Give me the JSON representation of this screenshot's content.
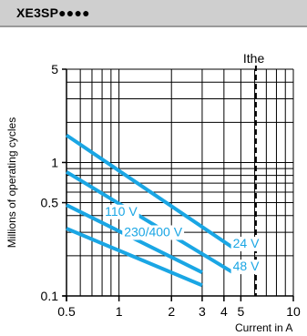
{
  "header": {
    "title": "XE3SP●●●●"
  },
  "colors": {
    "series": "#1aa6e4",
    "header_bg": "#cfcfcf",
    "grid": "#000000"
  },
  "chart_data": {
    "type": "line",
    "title": "",
    "xlabel": "Current in A",
    "ylabel": "Millions of operating cycles",
    "x_scale": "log",
    "y_scale": "log",
    "xlim": [
      0.5,
      10
    ],
    "ylim": [
      0.1,
      5
    ],
    "grid": true,
    "x_ticks": [
      {
        "value": 0.5,
        "label": "0.5"
      },
      {
        "value": 1,
        "label": "1"
      },
      {
        "value": 2,
        "label": "2"
      },
      {
        "value": 3,
        "label": "3"
      },
      {
        "value": 4,
        "label": "4"
      },
      {
        "value": 5,
        "label": "5"
      },
      {
        "value": 10,
        "label": "10"
      }
    ],
    "y_ticks": [
      {
        "value": 0.1,
        "label": "0.1"
      },
      {
        "value": 0.5,
        "label": "0.5"
      },
      {
        "value": 1,
        "label": "1"
      },
      {
        "value": 5,
        "label": "5"
      }
    ],
    "reference_line": {
      "x": 6.1,
      "label": "Ithe"
    },
    "series": [
      {
        "name": "24 V",
        "x": [
          0.5,
          4.5
        ],
        "y": [
          1.6,
          0.23
        ]
      },
      {
        "name": "48 V",
        "x": [
          0.5,
          4.5
        ],
        "y": [
          0.85,
          0.15
        ]
      },
      {
        "name": "110 V",
        "x": [
          0.5,
          3.0
        ],
        "y": [
          0.48,
          0.15
        ]
      },
      {
        "name": "230/400 V",
        "x": [
          0.5,
          3.0
        ],
        "y": [
          0.32,
          0.12
        ]
      }
    ],
    "series_labels": [
      {
        "text": "110 V",
        "x": 0.83,
        "y": 0.4
      },
      {
        "text": "230/400 V",
        "x": 1.07,
        "y": 0.28
      },
      {
        "text": "24 V",
        "x": 4.5,
        "y": 0.23
      },
      {
        "text": "48 V",
        "x": 4.5,
        "y": 0.155
      }
    ]
  }
}
